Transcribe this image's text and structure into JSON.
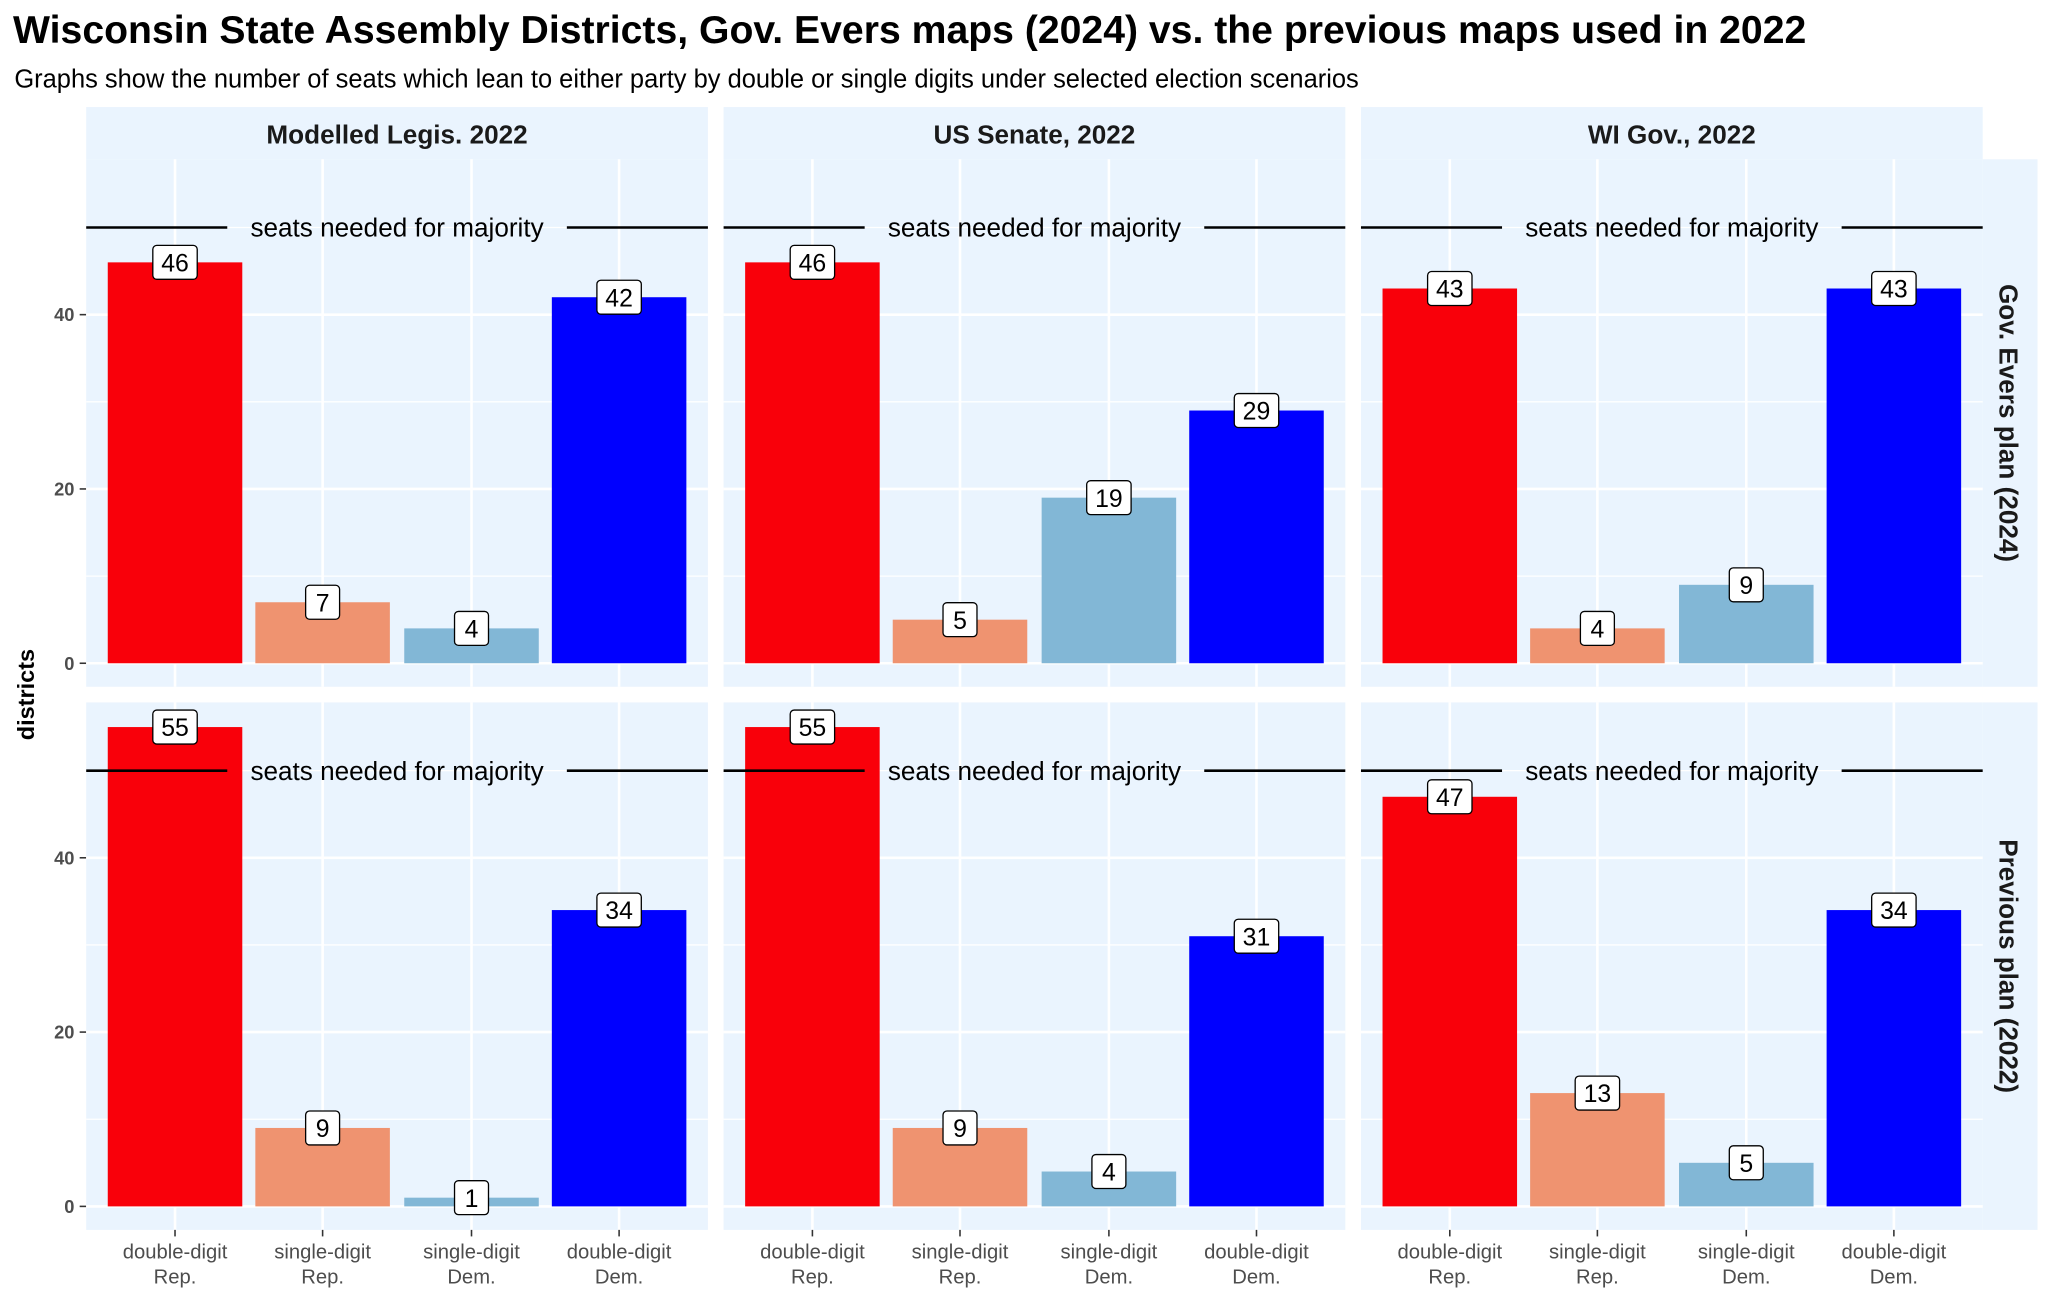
{
  "title": "Wisconsin State Assembly Districts, Gov. Evers maps (2024) vs. the previous maps used in 2022",
  "subtitle": "Graphs show the number of seats which lean to either party by double or single digits under selected election scenarios",
  "chart_data": {
    "type": "bar",
    "ylabel": "districts",
    "ylim": [
      0,
      57.5
    ],
    "yticks": [
      0,
      20,
      40
    ],
    "grid": true,
    "majority_line": {
      "value": 50,
      "label": "seats needed for majority"
    },
    "categories": [
      [
        "double-digit",
        "Rep."
      ],
      [
        "single-digit",
        "Rep."
      ],
      [
        "single-digit",
        "Dem."
      ],
      [
        "double-digit",
        "Dem."
      ]
    ],
    "category_colors": [
      "#f9000a",
      "#ef9370",
      "#82b7d6",
      "#0000ff"
    ],
    "columns": [
      "Modelled Legis. 2022",
      "US Senate, 2022",
      "WI Gov., 2022"
    ],
    "rows": [
      "Gov. Evers plan (2024)",
      "Previous plan (2022)"
    ],
    "panels": [
      [
        {
          "values": [
            46,
            7,
            4,
            42
          ]
        },
        {
          "values": [
            46,
            5,
            19,
            29
          ]
        },
        {
          "values": [
            43,
            4,
            9,
            43
          ]
        }
      ],
      [
        {
          "values": [
            55,
            9,
            1,
            34
          ]
        },
        {
          "values": [
            55,
            9,
            4,
            31
          ]
        },
        {
          "values": [
            47,
            13,
            5,
            34
          ]
        }
      ]
    ],
    "background_color": "#eaf4fe"
  }
}
